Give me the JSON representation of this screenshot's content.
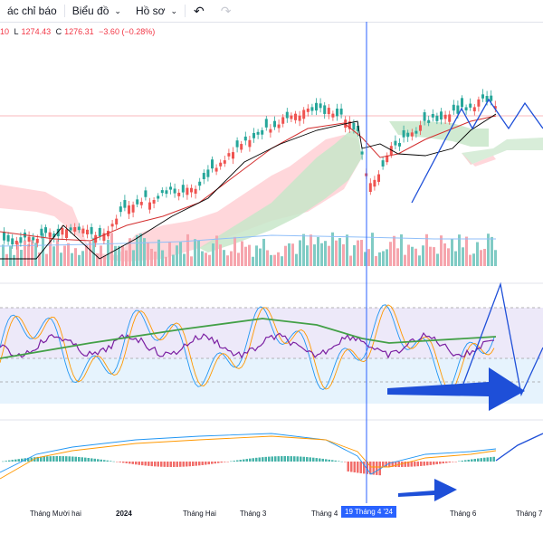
{
  "toolbar": {
    "indicators_label": "ác chỉ báo",
    "chart_label": "Biểu đồ",
    "profile_label": "Hồ sơ",
    "undo_icon": "undo-icon",
    "redo_icon": "redo-icon"
  },
  "ohlc": {
    "h_tail": "10",
    "l_label": "L",
    "l_value": "1274.43",
    "c_label": "C",
    "c_value": "1276.31",
    "change": "−3.60 (−0.28%)"
  },
  "xaxis": {
    "labels": [
      "Tháng Mười hai",
      "2024",
      "Tháng Hai",
      "Tháng 3",
      "Tháng 4",
      "Tháng 6",
      "Tháng 7"
    ],
    "crosshair_label": "19 Tháng 4 '24"
  },
  "colors": {
    "up": "#26a69a",
    "down": "#ef5350",
    "crosshair": "#2962ff",
    "arrow": "#1e4fd8"
  }
}
